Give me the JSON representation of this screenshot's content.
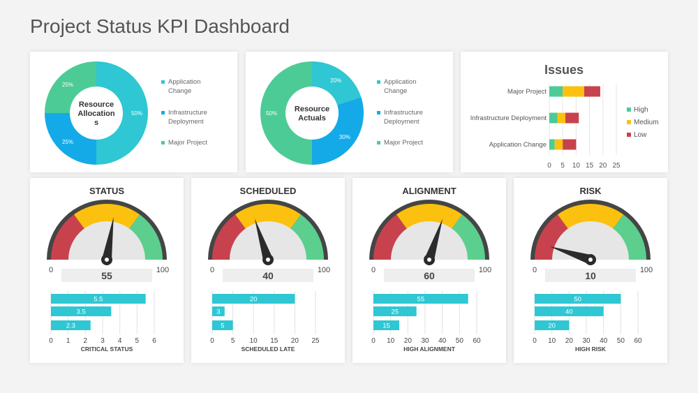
{
  "page": {
    "title": "Project Status KPI Dashboard"
  },
  "colors": {
    "teal": "#2ec7d3",
    "blue": "#14aae8",
    "green": "#4dcb96",
    "red": "#c8424e",
    "yellow": "#fcc10e",
    "gauge_green": "#5ccf8e",
    "dark": "#2b2b2b",
    "gauge_rim": "#454545",
    "gauge_inner": "#e6e6e6"
  },
  "chart_data": [
    {
      "id": "resource-allocations",
      "type": "pie",
      "center_label": [
        "Resource",
        "Allocation",
        "s"
      ],
      "slices": [
        {
          "label": "Application Change",
          "value": 50,
          "display": "50%",
          "color": "#2ec7d3"
        },
        {
          "label": "Infrastructure Deployment",
          "value": 25,
          "display": "25%",
          "color": "#14aae8"
        },
        {
          "label": "Major Project",
          "value": 25,
          "display": "25%",
          "color": "#4dcb96"
        }
      ],
      "legend": [
        {
          "lines": [
            "Application",
            "Change"
          ],
          "color": "#2ec7d3"
        },
        {
          "lines": [
            "Infrastructure",
            "Deployment"
          ],
          "color": "#14aae8"
        },
        {
          "lines": [
            "Major Project"
          ],
          "color": "#4dcb96"
        }
      ]
    },
    {
      "id": "resource-actuals",
      "type": "pie",
      "center_label": [
        "Resource",
        "Actuals"
      ],
      "slices": [
        {
          "label": "Application Change",
          "value": 20,
          "display": "20%",
          "color": "#2ec7d3"
        },
        {
          "label": "Infrastructure Deployment",
          "value": 30,
          "display": "30%",
          "color": "#14aae8"
        },
        {
          "label": "Major Project",
          "value": 50,
          "display": "50%",
          "color": "#4dcb96"
        }
      ],
      "legend": [
        {
          "lines": [
            "Application",
            "Change"
          ],
          "color": "#2ec7d3"
        },
        {
          "lines": [
            "Infrastructure",
            "Deployment"
          ],
          "color": "#14aae8"
        },
        {
          "lines": [
            "Major Project"
          ],
          "color": "#4dcb96"
        }
      ]
    },
    {
      "id": "issues",
      "type": "bar",
      "orientation": "horizontal",
      "stacked": true,
      "title": "Issues",
      "categories": [
        "Major Project",
        "Infrastructure Deployment",
        "Application Change"
      ],
      "series": [
        {
          "name": "High",
          "values": [
            5,
            3,
            2
          ],
          "color": "#4dcb96"
        },
        {
          "name": "Medium",
          "values": [
            8,
            3,
            3
          ],
          "color": "#fcc10e"
        },
        {
          "name": "Low",
          "values": [
            6,
            5,
            5
          ],
          "color": "#c8424e"
        }
      ],
      "xticks": [
        0,
        5,
        10,
        15,
        20,
        25
      ],
      "xlim": [
        0,
        25
      ],
      "legend_position": "right"
    },
    {
      "id": "status",
      "type": "gauge",
      "title": "STATUS",
      "value": 55,
      "min": 0,
      "max": 100,
      "min_label": "0",
      "max_label": "100",
      "value_label": "55",
      "bars": {
        "type": "bar",
        "orientation": "horizontal",
        "values": [
          5.5,
          3.5,
          2.3
        ],
        "labels": [
          "5.5",
          "3.5",
          "2.3"
        ],
        "xticks": [
          0,
          1,
          2,
          3,
          4,
          5,
          6
        ],
        "xlim": [
          0,
          6
        ],
        "xlabel": "CRITICAL STATUS"
      }
    },
    {
      "id": "scheduled",
      "type": "gauge",
      "title": "SCHEDULED",
      "value": 40,
      "min": 0,
      "max": 100,
      "min_label": "0",
      "max_label": "100",
      "value_label": "40",
      "bars": {
        "type": "bar",
        "orientation": "horizontal",
        "values": [
          20,
          3,
          5
        ],
        "labels": [
          "20",
          "3",
          "5"
        ],
        "xticks": [
          0,
          5,
          10,
          15,
          20,
          25
        ],
        "xlim": [
          0,
          25
        ],
        "xlabel": "SCHEDULED LATE"
      }
    },
    {
      "id": "alignment",
      "type": "gauge",
      "title": "ALIGNMENT",
      "value": 60,
      "min": 0,
      "max": 100,
      "min_label": "0",
      "max_label": "100",
      "value_label": "60",
      "bars": {
        "type": "bar",
        "orientation": "horizontal",
        "values": [
          55,
          25,
          15
        ],
        "labels": [
          "55",
          "25",
          "15"
        ],
        "xticks": [
          0,
          10,
          20,
          30,
          40,
          50,
          60
        ],
        "xlim": [
          0,
          60
        ],
        "xlabel": "HIGH ALIGNMENT"
      }
    },
    {
      "id": "risk",
      "type": "gauge",
      "title": "RISK",
      "value": 10,
      "min": 0,
      "max": 100,
      "min_label": "0",
      "max_label": "100",
      "value_label": "10",
      "bars": {
        "type": "bar",
        "orientation": "horizontal",
        "values": [
          50,
          40,
          20
        ],
        "labels": [
          "50",
          "40",
          "20"
        ],
        "xticks": [
          0,
          10,
          20,
          30,
          40,
          50,
          60
        ],
        "xlim": [
          0,
          60
        ],
        "xlabel": "HIGH RISK"
      }
    }
  ]
}
